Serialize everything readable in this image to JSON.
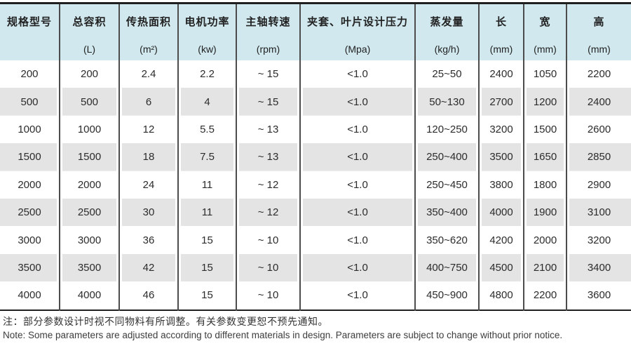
{
  "table": {
    "columns": [
      {
        "name": "规格型号",
        "unit": ""
      },
      {
        "name": "总容积",
        "unit": "(L)"
      },
      {
        "name": "传热面积",
        "unit": "(m²)"
      },
      {
        "name": "电机功率",
        "unit": "(kw)"
      },
      {
        "name": "主轴转速",
        "unit": "(rpm)"
      },
      {
        "name": "夹套、叶片设计压力",
        "unit": "(Mpa)"
      },
      {
        "name": "蒸发量",
        "unit": "(kg/h)"
      },
      {
        "name": "长",
        "unit": "(mm)"
      },
      {
        "name": "宽",
        "unit": "(mm)"
      },
      {
        "name": "高",
        "unit": "(mm)"
      }
    ],
    "rows": [
      [
        "200",
        "200",
        "2.4",
        "2.2",
        "~ 15",
        "<1.0",
        "25~50",
        "2400",
        "1050",
        "2200"
      ],
      [
        "500",
        "500",
        "6",
        "4",
        "~ 15",
        "<1.0",
        "50~130",
        "2700",
        "1200",
        "2400"
      ],
      [
        "1000",
        "1000",
        "12",
        "5.5",
        "~ 13",
        "<1.0",
        "120~250",
        "3200",
        "1500",
        "2600"
      ],
      [
        "1500",
        "1500",
        "18",
        "7.5",
        "~ 13",
        "<1.0",
        "250~400",
        "3500",
        "1650",
        "2850"
      ],
      [
        "2000",
        "2000",
        "24",
        "11",
        "~ 12",
        "<1.0",
        "250~450",
        "3800",
        "1800",
        "2900"
      ],
      [
        "2500",
        "2500",
        "30",
        "11",
        "~ 12",
        "<1.0",
        "350~400",
        "4000",
        "1900",
        "3100"
      ],
      [
        "3000",
        "3000",
        "36",
        "15",
        "~ 10",
        "<1.0",
        "350~620",
        "4200",
        "2000",
        "3200"
      ],
      [
        "3500",
        "3500",
        "42",
        "15",
        "~ 10",
        "<1.0",
        "400~750",
        "4500",
        "2100",
        "3400"
      ],
      [
        "4000",
        "4000",
        "46",
        "15",
        "~ 10",
        "<1.0",
        "450~900",
        "4800",
        "2200",
        "3600"
      ]
    ]
  },
  "notes": {
    "zh": "注：部分参数设计时视不同物料有所调整。有关参数变更恕不预先通知。",
    "en": "Note: Some parameters are adjusted according to different materials in design. Parameters are subject to change without prior notice."
  },
  "colors": {
    "header_bg": "#d0e8ee",
    "stripe_bg": "#e4e4e5",
    "frame_line": "#1f1f1f",
    "column_line": "#4c4c4c"
  }
}
